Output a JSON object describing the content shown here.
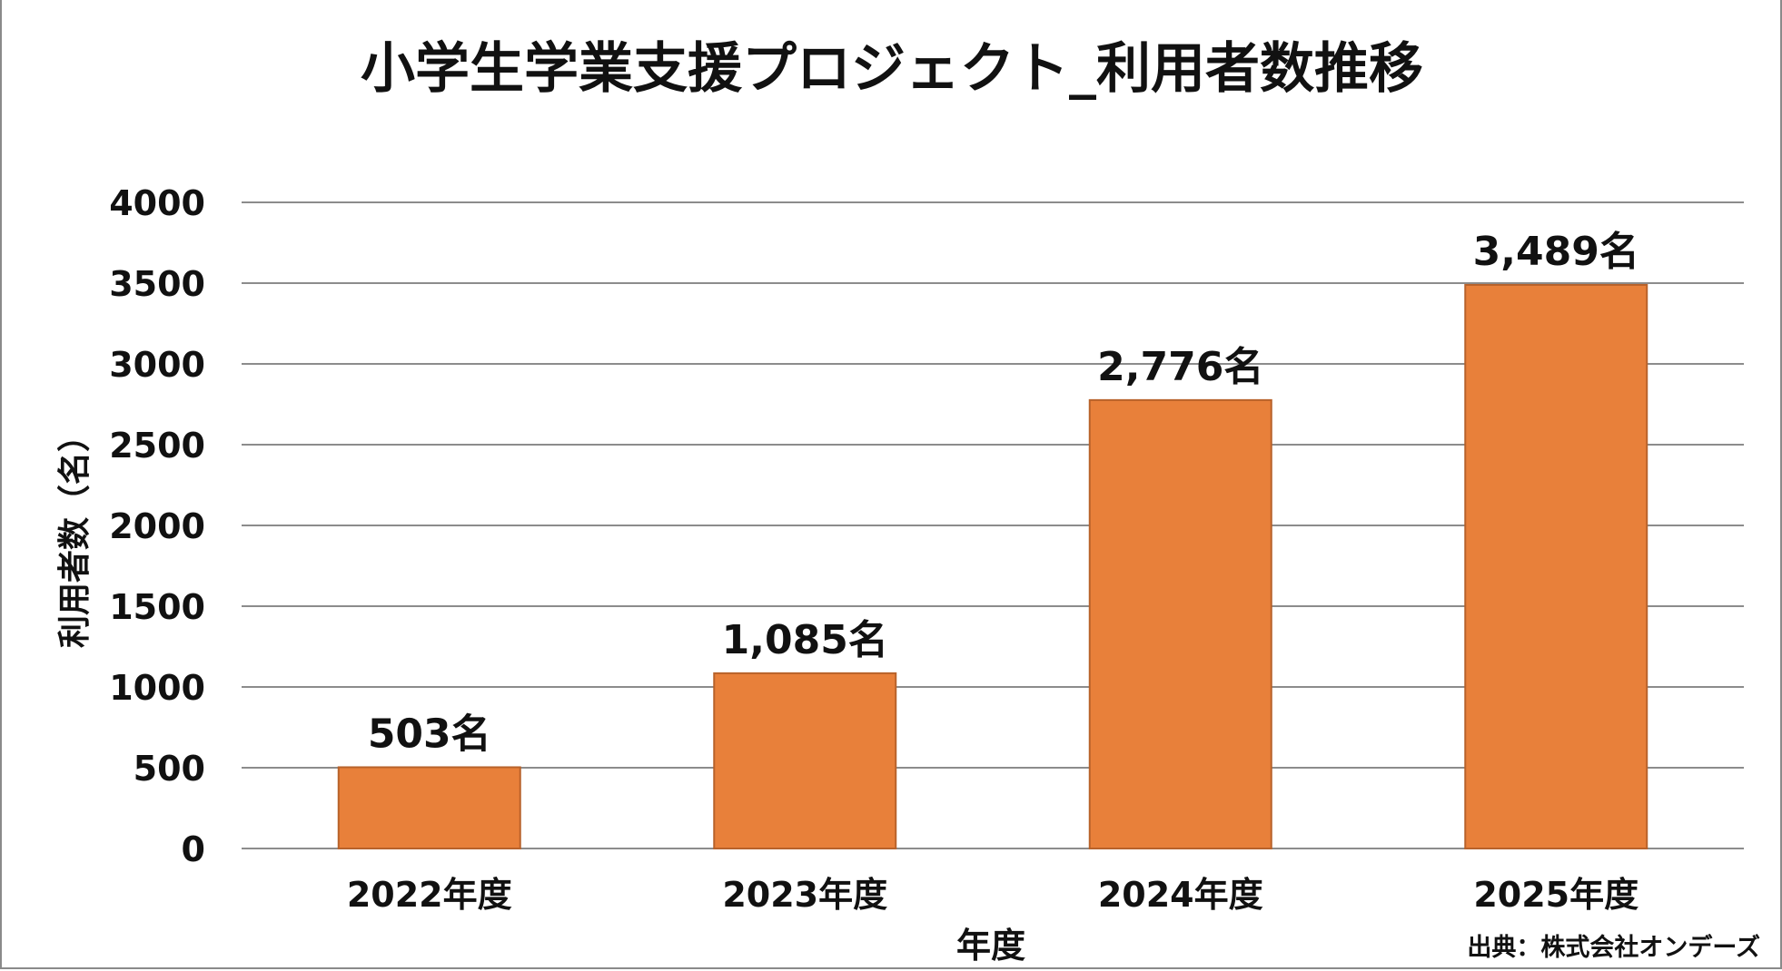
{
  "chart_data": {
    "type": "bar",
    "title": "小学生学業支援プロジェクト_利用者数推移",
    "xlabel": "年度",
    "ylabel": "利用者数（名）",
    "categories": [
      "2022年度",
      "2023年度",
      "2024年度",
      "2025年度"
    ],
    "values": [
      503,
      1085,
      2776,
      3489
    ],
    "data_labels": [
      "503名",
      "1,085名",
      "2,776名",
      "3,489名"
    ],
    "ylim": [
      0,
      4000
    ],
    "yticks": [
      0,
      500,
      1000,
      1500,
      2000,
      2500,
      3000,
      3500,
      4000
    ],
    "grid": true,
    "legend": "none",
    "colors": {
      "bar": "#E8803A",
      "bar_border": "#B8622A",
      "grid": "#8c8c8c"
    },
    "source": "出典：株式会社オンデーズ"
  }
}
